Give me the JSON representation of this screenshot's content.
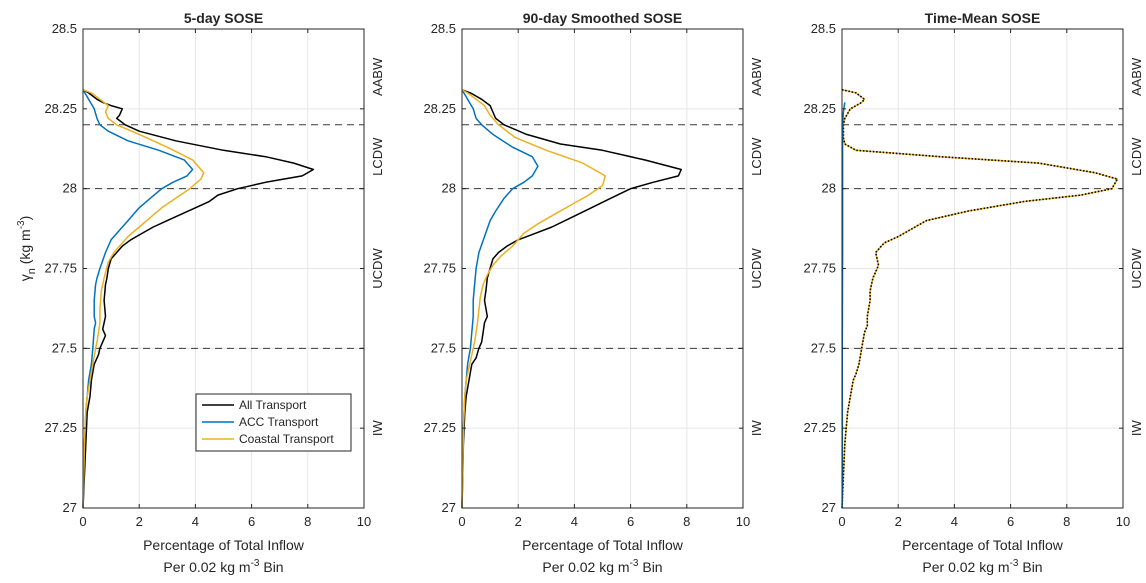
{
  "chart_data": [
    {
      "type": "line",
      "title": "5-day SOSE",
      "xlabel_line1": "Percentage of Total Inflow",
      "xlabel_line2_pre": "Per 0.02 kg m",
      "xlabel_line2_sup": "-3",
      "xlabel_line2_post": " Bin",
      "ylabel_main": "γ",
      "ylabel_sub": "n",
      "ylabel_unit": " (kg m",
      "ylabel_sup": "-3",
      "ylabel_close": ")",
      "xlim": [
        0,
        10
      ],
      "ylim": [
        27,
        28.5
      ],
      "x_ticks": [
        "0",
        "2",
        "4",
        "6",
        "8",
        "10"
      ],
      "y_ticks": [
        "27",
        "27.25",
        "27.5",
        "27.75",
        "28",
        "28.25",
        "28.5"
      ],
      "grid": true,
      "legend_position": "bottom-right",
      "ref_lines": [
        28.2,
        28.0,
        27.5
      ],
      "regions": [
        {
          "label": "AABW",
          "y": 28.35
        },
        {
          "label": "LCDW",
          "y": 28.1
        },
        {
          "label": "UCDW",
          "y": 27.75
        },
        {
          "label": "IW",
          "y": 27.25
        }
      ],
      "series": [
        {
          "name": "All Transport",
          "color": "#000000",
          "dotted": false,
          "x": [
            0,
            0.2,
            0.5,
            0.7,
            1.0,
            1.4,
            1.3,
            1.2,
            1.5,
            2.0,
            3.3,
            5.0,
            6.5,
            7.5,
            8.2,
            7.8,
            6.5,
            5.5,
            4.8,
            4.5,
            4.0,
            3.5,
            3.0,
            2.5,
            2.1,
            1.7,
            1.4,
            1.2,
            1.0,
            0.9,
            0.85,
            0.8,
            0.75,
            0.8,
            0.75,
            0.7,
            0.8,
            0.7,
            0.6,
            0.55,
            0.4,
            0.3,
            0.25,
            0.15,
            0.1,
            0.05,
            0
          ],
          "y": [
            28.31,
            28.3,
            28.28,
            28.27,
            28.26,
            28.25,
            28.23,
            28.22,
            28.2,
            28.18,
            28.15,
            28.12,
            28.1,
            28.08,
            28.06,
            28.04,
            28.02,
            28.0,
            27.98,
            27.96,
            27.94,
            27.92,
            27.9,
            27.88,
            27.86,
            27.84,
            27.82,
            27.8,
            27.78,
            27.75,
            27.72,
            27.7,
            27.65,
            27.6,
            27.58,
            27.56,
            27.54,
            27.52,
            27.5,
            27.48,
            27.45,
            27.4,
            27.35,
            27.3,
            27.2,
            27.1,
            27.0
          ]
        },
        {
          "name": "ACC Transport",
          "color": "#0072BD",
          "dotted": false,
          "x": [
            0,
            0.2,
            0.4,
            0.5,
            0.6,
            0.9,
            1.6,
            2.7,
            3.6,
            3.9,
            3.7,
            3.2,
            2.8,
            2.4,
            2.0,
            1.6,
            1.3,
            1.0,
            0.8,
            0.6,
            0.5,
            0.45,
            0.4,
            0.4,
            0.45,
            0.4,
            0.35,
            0.3,
            0.2,
            0.15,
            0.1,
            0.05,
            0
          ],
          "y": [
            28.31,
            28.28,
            28.25,
            28.22,
            28.2,
            28.18,
            28.15,
            28.12,
            28.09,
            28.06,
            28.04,
            28.02,
            28.0,
            27.97,
            27.94,
            27.9,
            27.87,
            27.84,
            27.8,
            27.75,
            27.72,
            27.7,
            27.65,
            27.6,
            27.58,
            27.56,
            27.5,
            27.45,
            27.4,
            27.35,
            27.3,
            27.2,
            27.0
          ]
        },
        {
          "name": "Coastal Transport",
          "color": "#EDB120",
          "dotted": false,
          "x": [
            0,
            0.3,
            0.6,
            0.9,
            0.8,
            0.9,
            1.2,
            2.0,
            3.0,
            3.9,
            4.3,
            4.2,
            3.8,
            3.3,
            2.8,
            2.4,
            2.0,
            1.6,
            1.3,
            1.1,
            0.9,
            0.75,
            0.65,
            0.6,
            0.6,
            0.55,
            0.5,
            0.45,
            0.35,
            0.25,
            0.15,
            0.1,
            0.05,
            0
          ],
          "y": [
            28.31,
            28.3,
            28.28,
            28.26,
            28.24,
            28.22,
            28.2,
            28.17,
            28.13,
            28.09,
            28.05,
            28.03,
            28.0,
            27.97,
            27.94,
            27.91,
            27.88,
            27.85,
            27.82,
            27.8,
            27.77,
            27.72,
            27.68,
            27.62,
            27.58,
            27.55,
            27.52,
            27.5,
            27.45,
            27.4,
            27.35,
            27.3,
            27.2,
            27.0
          ]
        }
      ]
    },
    {
      "type": "line",
      "title": "90-day Smoothed SOSE",
      "xlabel_line1": "Percentage of Total Inflow",
      "xlabel_line2_pre": "Per 0.02 kg m",
      "xlabel_line2_sup": "-3",
      "xlabel_line2_post": " Bin",
      "xlim": [
        0,
        10
      ],
      "ylim": [
        27,
        28.5
      ],
      "x_ticks": [
        "0",
        "2",
        "4",
        "6",
        "8",
        "10"
      ],
      "y_ticks": [
        "27",
        "27.25",
        "27.5",
        "27.75",
        "28",
        "28.25",
        "28.5"
      ],
      "grid": true,
      "ref_lines": [
        28.2,
        28.0,
        27.5
      ],
      "regions": [
        {
          "label": "AABW",
          "y": 28.35
        },
        {
          "label": "LCDW",
          "y": 28.1
        },
        {
          "label": "UCDW",
          "y": 27.75
        },
        {
          "label": "IW",
          "y": 27.25
        }
      ],
      "series": [
        {
          "name": "All Transport",
          "color": "#000000",
          "dotted": false,
          "x": [
            0,
            0.3,
            0.7,
            1.0,
            1.1,
            1.2,
            1.5,
            2.3,
            3.5,
            5.0,
            6.5,
            7.8,
            7.7,
            6.8,
            6.0,
            5.3,
            4.6,
            3.9,
            3.2,
            2.6,
            2.0,
            1.6,
            1.3,
            1.1,
            1.0,
            0.9,
            0.85,
            0.8,
            0.9,
            0.8,
            0.75,
            0.7,
            0.6,
            0.5,
            0.35,
            0.25,
            0.15,
            0.1,
            0.05,
            0
          ],
          "y": [
            28.31,
            28.3,
            28.28,
            28.26,
            28.24,
            28.22,
            28.2,
            28.17,
            28.14,
            28.12,
            28.09,
            28.06,
            28.04,
            28.02,
            28.0,
            27.97,
            27.94,
            27.91,
            27.88,
            27.86,
            27.84,
            27.82,
            27.8,
            27.78,
            27.75,
            27.72,
            27.68,
            27.65,
            27.6,
            27.58,
            27.55,
            27.52,
            27.5,
            27.47,
            27.45,
            27.4,
            27.35,
            27.3,
            27.2,
            27.0
          ]
        },
        {
          "name": "ACC Transport",
          "color": "#0072BD",
          "dotted": false,
          "x": [
            0,
            0.2,
            0.4,
            0.5,
            0.7,
            1.1,
            1.8,
            2.5,
            2.7,
            2.5,
            2.2,
            1.8,
            1.5,
            1.2,
            1.0,
            0.8,
            0.6,
            0.5,
            0.45,
            0.4,
            0.4,
            0.35,
            0.3,
            0.2,
            0.15,
            0.1,
            0.05,
            0
          ],
          "y": [
            28.31,
            28.28,
            28.25,
            28.22,
            28.2,
            28.17,
            28.13,
            28.1,
            28.07,
            28.04,
            28.02,
            28.0,
            27.97,
            27.93,
            27.9,
            27.85,
            27.8,
            27.75,
            27.7,
            27.65,
            27.6,
            27.55,
            27.5,
            27.45,
            27.4,
            27.35,
            27.25,
            27.0
          ]
        },
        {
          "name": "Coastal Transport",
          "color": "#EDB120",
          "dotted": false,
          "x": [
            0,
            0.2,
            0.5,
            0.8,
            1.0,
            1.3,
            1.9,
            3.0,
            4.3,
            5.1,
            5.0,
            4.5,
            3.9,
            3.3,
            2.7,
            2.2,
            1.8,
            1.4,
            1.1,
            0.9,
            0.75,
            0.65,
            0.6,
            0.55,
            0.5,
            0.45,
            0.35,
            0.25,
            0.15,
            0.1,
            0.05,
            0
          ],
          "y": [
            28.31,
            28.3,
            28.28,
            28.26,
            28.23,
            28.2,
            28.16,
            28.12,
            28.08,
            28.04,
            28.01,
            27.98,
            27.95,
            27.92,
            27.89,
            27.86,
            27.82,
            27.79,
            27.76,
            27.73,
            27.7,
            27.66,
            27.62,
            27.58,
            27.55,
            27.52,
            27.48,
            27.44,
            27.4,
            27.35,
            27.25,
            27.0
          ]
        }
      ]
    },
    {
      "type": "line",
      "title": "Time-Mean SOSE",
      "xlabel_line1": "Percentage of Total Inflow",
      "xlabel_line2_pre": "Per 0.02 kg m",
      "xlabel_line2_sup": "-3",
      "xlabel_line2_post": " Bin",
      "xlim": [
        0,
        10
      ],
      "ylim": [
        27,
        28.5
      ],
      "x_ticks": [
        "0",
        "2",
        "4",
        "6",
        "8",
        "10"
      ],
      "y_ticks": [
        "27",
        "27.25",
        "27.5",
        "27.75",
        "28",
        "28.25",
        "28.5"
      ],
      "grid": true,
      "ref_lines": [
        28.2,
        28.0,
        27.5
      ],
      "regions": [
        {
          "label": "AABW",
          "y": 28.35
        },
        {
          "label": "LCDW",
          "y": 28.1
        },
        {
          "label": "UCDW",
          "y": 27.75
        },
        {
          "label": "IW",
          "y": 27.25
        }
      ],
      "series": [
        {
          "name": "All Transport",
          "color": "#EDB120",
          "dotted": false,
          "x": [
            0,
            0.5,
            0.8,
            0.7,
            0.3,
            0.1,
            0.05,
            0.05,
            0.1,
            0.5,
            3.5,
            7.0,
            9.0,
            9.8,
            9.6,
            8.5,
            6.5,
            4.5,
            3.0,
            2.0,
            1.5,
            1.2,
            1.3,
            1.1,
            1.0,
            1.0,
            0.9,
            0.9,
            0.8,
            0.7,
            0.6,
            0.5,
            0.4,
            0.3,
            0.2,
            0.15,
            0.1,
            0.05,
            0
          ],
          "y": [
            28.31,
            28.3,
            28.28,
            28.27,
            28.25,
            28.22,
            28.2,
            28.16,
            28.14,
            28.12,
            28.1,
            28.08,
            28.05,
            28.03,
            28.0,
            27.98,
            27.96,
            27.93,
            27.9,
            27.85,
            27.83,
            27.8,
            27.76,
            27.72,
            27.68,
            27.65,
            27.6,
            27.57,
            27.55,
            27.5,
            27.45,
            27.42,
            27.4,
            27.35,
            27.3,
            27.25,
            27.2,
            27.1,
            27.0
          ]
        },
        {
          "name": "All Transport",
          "color": "#000000",
          "dotted": true,
          "x": [
            0,
            0.5,
            0.8,
            0.7,
            0.3,
            0.1,
            0.05,
            0.05,
            0.1,
            0.5,
            3.5,
            7.0,
            9.0,
            9.8,
            9.6,
            8.5,
            6.5,
            4.5,
            3.0,
            2.0,
            1.5,
            1.2,
            1.3,
            1.1,
            1.0,
            1.0,
            0.9,
            0.9,
            0.8,
            0.7,
            0.6,
            0.5,
            0.4,
            0.3,
            0.2,
            0.15,
            0.1,
            0.05,
            0
          ],
          "y": [
            28.31,
            28.3,
            28.28,
            28.27,
            28.25,
            28.22,
            28.2,
            28.16,
            28.14,
            28.12,
            28.1,
            28.08,
            28.05,
            28.03,
            28.0,
            27.98,
            27.96,
            27.93,
            27.9,
            27.85,
            27.83,
            27.8,
            27.76,
            27.72,
            27.68,
            27.65,
            27.6,
            27.57,
            27.55,
            27.5,
            27.45,
            27.42,
            27.4,
            27.35,
            27.3,
            27.25,
            27.2,
            27.1,
            27.0
          ]
        },
        {
          "name": "ACC Transport",
          "color": "#0072BD",
          "dotted": false,
          "x": [
            0.1,
            0.05,
            0.02,
            0.02,
            0.02,
            0.01,
            0.01
          ],
          "y": [
            28.27,
            28.24,
            28.2,
            28.0,
            27.8,
            27.5,
            27.0
          ]
        }
      ]
    }
  ]
}
